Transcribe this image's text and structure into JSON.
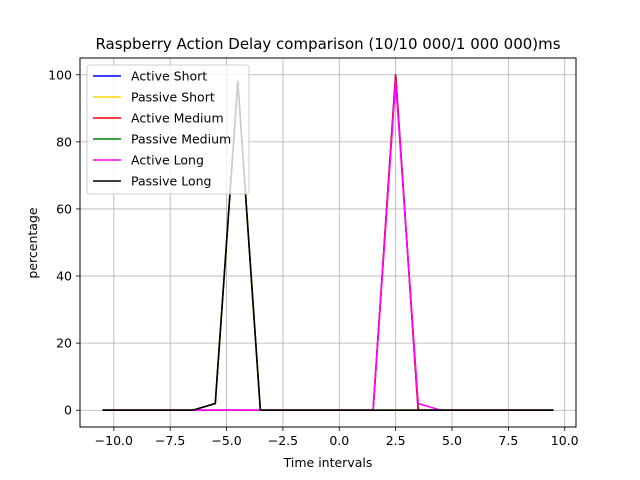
{
  "chart_data": {
    "type": "line",
    "title": "Raspberry Action Delay comparison (10/10 000/1 000 000)ms",
    "xlabel": "Time intervals",
    "ylabel": "percentage",
    "xlim": [
      -11.5,
      10.5
    ],
    "ylim": [
      -5,
      105
    ],
    "xticks": [
      -10.0,
      -7.5,
      -5.0,
      -2.5,
      0.0,
      2.5,
      5.0,
      7.5,
      10.0
    ],
    "xtick_labels": [
      "−10.0",
      "−7.5",
      "−5.0",
      "−2.5",
      "0.0",
      "2.5",
      "5.0",
      "7.5",
      "10.0"
    ],
    "yticks": [
      0,
      20,
      40,
      60,
      80,
      100
    ],
    "ytick_labels": [
      "0",
      "20",
      "40",
      "60",
      "80",
      "100"
    ],
    "grid": true,
    "legend_position": "top-left",
    "x": [
      -10.5,
      -9.5,
      -8.5,
      -7.5,
      -6.5,
      -5.5,
      -4.5,
      -3.5,
      -2.5,
      -1.5,
      -0.5,
      0.5,
      1.5,
      2.5,
      3.5,
      4.5,
      5.5,
      6.5,
      7.5,
      8.5,
      9.5
    ],
    "series": [
      {
        "name": "Active Short",
        "color": "#0000ff",
        "values": [
          0,
          0,
          0,
          0,
          0,
          0,
          0,
          0,
          0,
          0,
          0,
          0,
          0,
          100,
          0,
          0,
          0,
          0,
          0,
          0,
          0
        ]
      },
      {
        "name": "Passive Short",
        "color": "#ffd700",
        "values": [
          0,
          0,
          0,
          0,
          0,
          2,
          98,
          0,
          0,
          0,
          0,
          0,
          0,
          0,
          0,
          0,
          0,
          0,
          0,
          0,
          0
        ]
      },
      {
        "name": "Active Medium",
        "color": "#ff0000",
        "values": [
          0,
          0,
          0,
          0,
          0,
          0,
          0,
          0,
          0,
          0,
          0,
          0,
          0,
          100,
          0,
          0,
          0,
          0,
          0,
          0,
          0
        ]
      },
      {
        "name": "Passive Medium",
        "color": "#008000",
        "values": [
          0,
          0,
          0,
          0,
          0,
          2,
          98,
          0,
          0,
          0,
          0,
          0,
          0,
          0,
          0,
          0,
          0,
          0,
          0,
          0,
          0
        ]
      },
      {
        "name": "Active Long",
        "color": "#ff00ff",
        "values": [
          0,
          0,
          0,
          0,
          0,
          0,
          0,
          0,
          0,
          0,
          0,
          0,
          0,
          98,
          2,
          0,
          0,
          0,
          0,
          0,
          0
        ]
      },
      {
        "name": "Passive Long",
        "color": "#000000",
        "values": [
          0,
          0,
          0,
          0,
          0,
          2,
          98,
          0,
          0,
          0,
          0,
          0,
          0,
          0,
          0,
          0,
          0,
          0,
          0,
          0,
          0
        ]
      }
    ]
  }
}
